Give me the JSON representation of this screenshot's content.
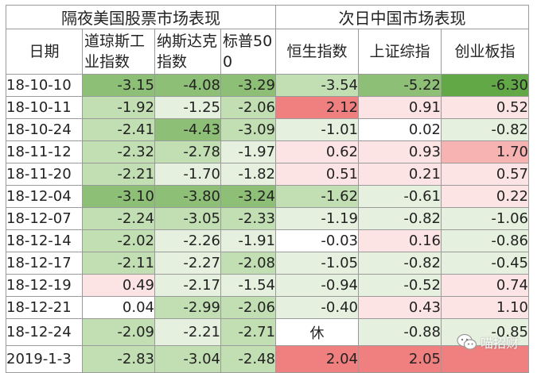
{
  "header": {
    "us_group": "隔夜美国股票市场表现",
    "cn_group": "次日中国市场表现",
    "columns": [
      "日期",
      "道琼斯工业指数",
      "纳斯达克指数",
      "标普500",
      "恒生指数",
      "上证综指",
      "创业板指"
    ]
  },
  "colors": {
    "down_strong": "#63a847",
    "down_mid": "#8dc076",
    "down_light": "#c2dfb4",
    "down_pale": "#e5f1de",
    "up_strong": "#f08080",
    "up_mid": "#f7b2b2",
    "up_pale": "#fde4e4",
    "neutral": "#ffffff"
  },
  "rows": [
    {
      "date": "18-10-10",
      "values": [
        "-3.15",
        "-4.08",
        "-3.29",
        "-3.54",
        "-5.22",
        "-6.30"
      ],
      "tones": [
        "down_mid",
        "down_mid",
        "down_mid",
        "down_light",
        "down_mid",
        "down_strong"
      ]
    },
    {
      "date": "18-10-11",
      "values": [
        "-1.92",
        "-1.25",
        "-2.06",
        "2.12",
        "0.91",
        "0.52"
      ],
      "tones": [
        "down_light",
        "down_pale",
        "down_light",
        "up_strong",
        "up_pale",
        "up_pale"
      ]
    },
    {
      "date": "18-10-24",
      "values": [
        "-2.41",
        "-4.43",
        "-3.09",
        "-1.01",
        "0.02",
        "-0.82"
      ],
      "tones": [
        "down_light",
        "down_mid",
        "down_light",
        "down_pale",
        "neutral",
        "down_pale"
      ]
    },
    {
      "date": "18-11-12",
      "values": [
        "-2.32",
        "-2.78",
        "-1.97",
        "0.62",
        "0.93",
        "1.70"
      ],
      "tones": [
        "down_light",
        "down_light",
        "down_pale",
        "up_pale",
        "up_pale",
        "up_mid"
      ]
    },
    {
      "date": "18-11-20",
      "values": [
        "-2.21",
        "-1.70",
        "-1.82",
        "0.51",
        "0.21",
        "0.57"
      ],
      "tones": [
        "down_light",
        "down_pale",
        "down_pale",
        "up_pale",
        "up_pale",
        "up_pale"
      ]
    },
    {
      "date": "18-12-04",
      "values": [
        "-3.10",
        "-3.80",
        "-3.24",
        "-1.62",
        "-0.61",
        "0.22"
      ],
      "tones": [
        "down_mid",
        "down_mid",
        "down_mid",
        "down_light",
        "down_pale",
        "up_pale"
      ]
    },
    {
      "date": "18-12-07",
      "values": [
        "-2.24",
        "-3.05",
        "-2.33",
        "-1.19",
        "-0.82",
        "-1.06"
      ],
      "tones": [
        "down_light",
        "down_light",
        "down_light",
        "down_pale",
        "down_pale",
        "down_pale"
      ]
    },
    {
      "date": "18-12-14",
      "values": [
        "-2.02",
        "-2.26",
        "-1.91",
        "-0.03",
        "0.16",
        "-0.86"
      ],
      "tones": [
        "down_light",
        "down_pale",
        "down_pale",
        "neutral",
        "up_pale",
        "down_pale"
      ]
    },
    {
      "date": "18-12-17",
      "values": [
        "-2.11",
        "-2.27",
        "-2.08",
        "-1.05",
        "-0.82",
        "-0.45"
      ],
      "tones": [
        "down_light",
        "down_pale",
        "down_light",
        "down_pale",
        "down_pale",
        "down_pale"
      ]
    },
    {
      "date": "18-12-19",
      "values": [
        "0.49",
        "-2.17",
        "-1.54",
        "-0.94",
        "-0.52",
        "0.74"
      ],
      "tones": [
        "up_pale",
        "down_pale",
        "down_pale",
        "down_pale",
        "down_pale",
        "up_pale"
      ]
    },
    {
      "date": "18-12-21",
      "values": [
        "0.04",
        "-2.99",
        "-2.06",
        "-0.40",
        "0.43",
        "1.10"
      ],
      "tones": [
        "neutral",
        "down_light",
        "down_light",
        "down_pale",
        "up_pale",
        "up_pale"
      ]
    },
    {
      "date": "18-12-24",
      "values": [
        "-2.09",
        "-2.21",
        "-2.71",
        "休",
        "-0.88",
        "-0.85"
      ],
      "tones": [
        "down_light",
        "down_pale",
        "down_light",
        "neutral",
        "down_pale",
        "down_pale"
      ]
    },
    {
      "date": "2019-1-3",
      "values": [
        "-2.83",
        "-3.04",
        "-2.48",
        "2.04",
        "2.05",
        ""
      ],
      "tones": [
        "down_light",
        "down_light",
        "down_light",
        "up_strong",
        "up_strong",
        "up_strong"
      ]
    }
  ],
  "watermark": {
    "text": "喵招财",
    "icon": "wechat-logo-icon"
  }
}
